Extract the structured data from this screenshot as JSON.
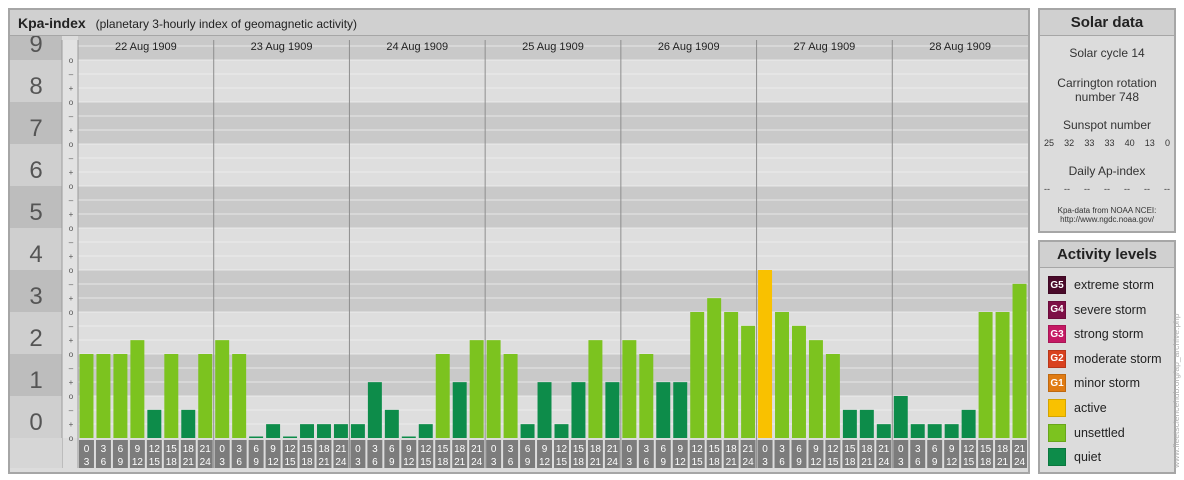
{
  "kp_panel": {
    "title": "Kpa-index",
    "subtitle": "(planetary 3-hourly index of geomagnetic activity)",
    "days": [
      "22 Aug 1909",
      "23 Aug 1909",
      "24 Aug 1909",
      "25 Aug 1909",
      "26 Aug 1909",
      "27 Aug 1909",
      "28 Aug 1909"
    ],
    "interval_labels": [
      [
        "0",
        "3"
      ],
      [
        "3",
        "6"
      ],
      [
        "6",
        "9"
      ],
      [
        "9",
        "12"
      ],
      [
        "12",
        "15"
      ],
      [
        "15",
        "18"
      ],
      [
        "18",
        "21"
      ],
      [
        "21",
        "24"
      ]
    ],
    "kp_levels": [
      "0",
      "1",
      "2",
      "3",
      "4",
      "5",
      "6",
      "7",
      "8",
      "9"
    ],
    "sublevel_marks": [
      "o",
      "+",
      "–",
      "o",
      "+",
      "–",
      "o",
      "+",
      "–",
      "o",
      "+",
      "–",
      "o",
      "+",
      "–",
      "o",
      "+",
      "–",
      "o",
      "+",
      "–",
      "o",
      "+",
      "–",
      "o",
      "+",
      "–",
      "o"
    ]
  },
  "chart_data": {
    "type": "bar",
    "ylim": [
      0,
      9
    ],
    "xlabel": "",
    "ylabel": "",
    "categories": [
      "0-3",
      "3-6",
      "6-9",
      "9-12",
      "12-15",
      "15-18",
      "18-21",
      "21-24"
    ],
    "values": [
      [
        2,
        2,
        2,
        2.33,
        0.67,
        2,
        0.67,
        2
      ],
      [
        2.33,
        2,
        0,
        0.33,
        0,
        0.33,
        0.33,
        0.33
      ],
      [
        0.33,
        1.33,
        0.67,
        0,
        0.33,
        2,
        1.33,
        2.33
      ],
      [
        2.33,
        2,
        0.33,
        1.33,
        0.33,
        1.33,
        2.33,
        1.33
      ],
      [
        2.33,
        2,
        1.33,
        1.33,
        3,
        3.33,
        3,
        2.67
      ],
      [
        4,
        3,
        2.67,
        2.33,
        2,
        0.67,
        0.67,
        0.33
      ],
      [
        1,
        0.33,
        0.33,
        0.33,
        0.67,
        3,
        3,
        3.67
      ]
    ],
    "thresholds": {
      "unsettled": 2,
      "active": 4,
      "G1": 5,
      "G2": 6,
      "G3": 7,
      "G4": 8,
      "G5": 9
    },
    "colors": {
      "quiet": "#0d8c4a",
      "unsettled": "#7cc31f",
      "active": "#f9c100",
      "G1": "#e07b13",
      "G2": "#d9411e",
      "G3": "#c51964",
      "G4": "#7e0f46",
      "G5": "#4a0a2a"
    }
  },
  "solar_data": {
    "title": "Solar data",
    "solar_cycle": "Solar cycle 14",
    "carrington_line1": "Carrington rotation",
    "carrington_line2": "number 748",
    "sunspot_title": "Sunspot number",
    "sunspot_values": [
      "25",
      "32",
      "33",
      "33",
      "40",
      "13",
      "0"
    ],
    "ap_title": "Daily Ap-index",
    "ap_values": [
      "--",
      "--",
      "--",
      "--",
      "--",
      "--",
      "--"
    ],
    "source_line1": "Kpa-data from NOAA NCEI:",
    "source_line2": "http://www.ngdc.noaa.gov/"
  },
  "activity_levels": {
    "title": "Activity levels",
    "items": [
      {
        "code": "G5",
        "label": "extreme storm",
        "color": "#4a0a2a"
      },
      {
        "code": "G4",
        "label": "severe storm",
        "color": "#7e0f46"
      },
      {
        "code": "G3",
        "label": "strong storm",
        "color": "#c51964"
      },
      {
        "code": "G2",
        "label": "moderate storm",
        "color": "#d9411e"
      },
      {
        "code": "G1",
        "label": "minor storm",
        "color": "#e07b13"
      },
      {
        "code": "",
        "label": "active",
        "color": "#f9c100"
      },
      {
        "code": "",
        "label": "unsettled",
        "color": "#7cc31f"
      },
      {
        "code": "",
        "label": "quiet",
        "color": "#0d8c4a"
      }
    ]
  },
  "watermark": "www.fleetsciencehub.org/ap_archive.php"
}
